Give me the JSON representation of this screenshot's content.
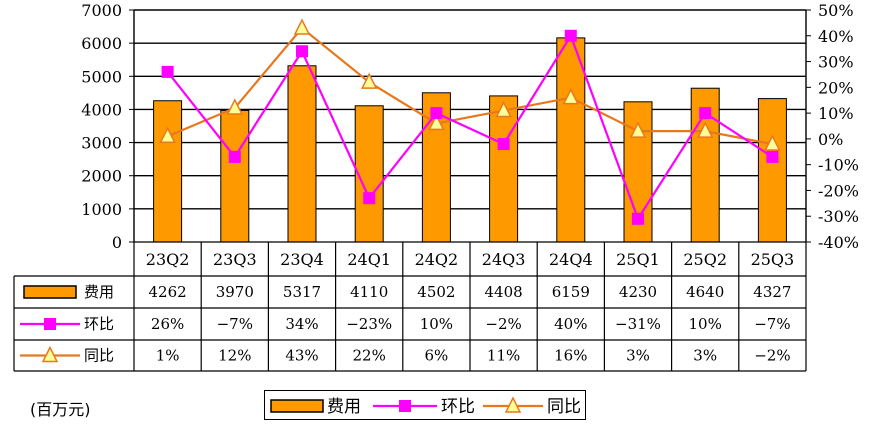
{
  "chart_data": {
    "type": "bar",
    "categories": [
      "23Q2",
      "23Q3",
      "23Q4",
      "24Q1",
      "24Q2",
      "24Q3",
      "24Q4",
      "25Q1",
      "25Q2",
      "25Q3"
    ],
    "series": [
      {
        "name": "费用",
        "type": "bar",
        "axis": "left",
        "color": "#FF9900",
        "values": [
          4262,
          3970,
          5317,
          4110,
          4502,
          4408,
          6159,
          4230,
          4640,
          4327
        ],
        "table": [
          "4262",
          "3970",
          "5317",
          "4110",
          "4502",
          "4408",
          "6159",
          "4230",
          "4640",
          "4327"
        ]
      },
      {
        "name": "环比",
        "type": "line",
        "axis": "right",
        "color": "#FF00FF",
        "marker": "square",
        "values": [
          26,
          -7,
          34,
          -23,
          10,
          -2,
          40,
          -31,
          10,
          -7
        ],
        "table": [
          "26%",
          "-7%",
          "34%",
          "-23%",
          "10%",
          "-2%",
          "40%",
          "-31%",
          "10%",
          "-7%"
        ]
      },
      {
        "name": "同比",
        "type": "line",
        "axis": "right",
        "color": "#E8781E",
        "marker": "triangle",
        "values": [
          1,
          12,
          43,
          22,
          6,
          11,
          16,
          3,
          3,
          -2
        ],
        "table": [
          "1%",
          "12%",
          "43%",
          "22%",
          "6%",
          "11%",
          "16%",
          "3%",
          "3%",
          "-2%"
        ]
      }
    ],
    "y_left": {
      "ylim": [
        0,
        7000
      ],
      "ticks": [
        "0",
        "1000",
        "2000",
        "3000",
        "4000",
        "5000",
        "6000",
        "7000"
      ]
    },
    "y_right": {
      "ylim": [
        -40,
        50
      ],
      "ticks": [
        "-40%",
        "-30%",
        "-20%",
        "-10%",
        "0%",
        "10%",
        "20%",
        "30%",
        "40%",
        "50%"
      ]
    },
    "grid": true,
    "legend_position": "bottom",
    "unit_label": "(百万元)"
  }
}
